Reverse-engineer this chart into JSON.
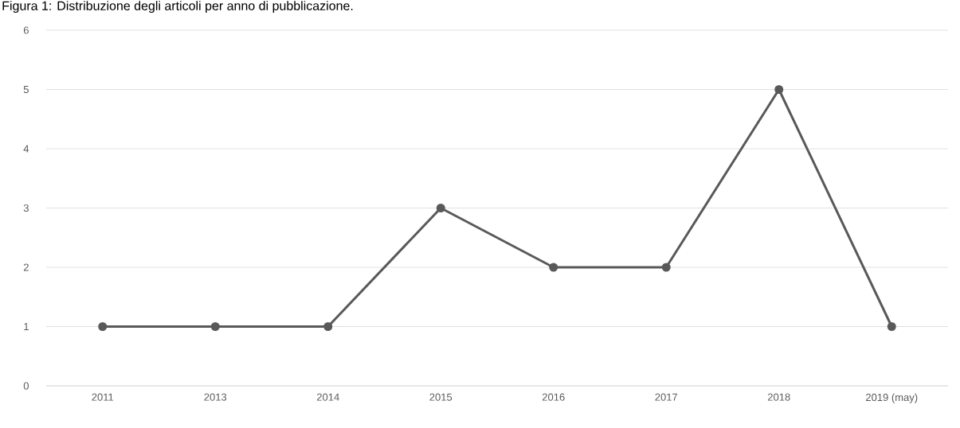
{
  "chart_data": {
    "type": "line",
    "title": "Figura 1: Distribuzione degli articoli per anno di pubblicazione.",
    "categories": [
      "2011",
      "2013",
      "2014",
      "2015",
      "2016",
      "2017",
      "2018",
      "2019 (may)"
    ],
    "series": [
      {
        "color": "#595959",
        "values": [
          1,
          1,
          1,
          3,
          2,
          2,
          5,
          1
        ]
      }
    ],
    "ylim": [
      0,
      6
    ],
    "yticks": [
      0,
      1,
      2,
      3,
      4,
      5,
      6
    ],
    "grid": "y",
    "marker": "circle",
    "line_style": "solid"
  }
}
